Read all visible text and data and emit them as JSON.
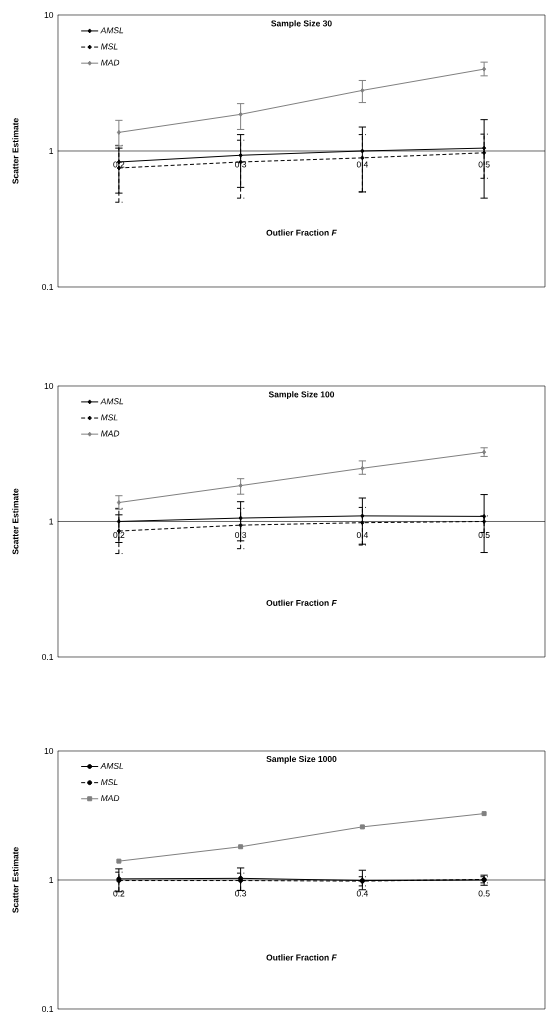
{
  "chart_data": [
    {
      "type": "line",
      "title": "Sample Size 30",
      "xlabel": "Outlier Fraction *F*",
      "ylabel": "Scatter Estimate",
      "categories": [
        "0.2",
        "0.3",
        "0.4",
        "0.5"
      ],
      "log": true,
      "ylim": [
        0.1,
        10
      ],
      "yticks": [
        0.1,
        1,
        10
      ],
      "legend": "top left",
      "series": [
        {
          "name": "AMSL",
          "color": "#000000",
          "marker": "diamond",
          "line_style": "solid",
          "values": [
            0.83,
            0.93,
            1.0,
            1.05
          ],
          "errors": [
            [
              0.49,
              1.05
            ],
            [
              0.54,
              1.32
            ],
            [
              0.5,
              1.5
            ],
            [
              0.45,
              1.7
            ]
          ]
        },
        {
          "name": "MSL",
          "color": "#000000",
          "marker": "diamond",
          "line_style": "dashed",
          "values": [
            0.75,
            0.83,
            0.89,
            0.97
          ],
          "errors": [
            [
              0.42,
              1.1
            ],
            [
              0.45,
              1.2
            ],
            [
              0.5,
              1.32
            ],
            [
              0.63,
              1.33
            ]
          ]
        },
        {
          "name": "MAD",
          "color": "#808080",
          "marker": "diamond",
          "line_style": "solid",
          "values": [
            1.37,
            1.86,
            2.79,
            4.0
          ],
          "errors": [
            [
              1.09,
              1.68
            ],
            [
              1.44,
              2.23
            ],
            [
              2.27,
              3.3
            ],
            [
              3.57,
              4.5
            ]
          ]
        }
      ]
    },
    {
      "type": "line",
      "title": "Sample Size 100",
      "xlabel": "Outlier Fraction *F*",
      "ylabel": "Scatter Estimate",
      "categories": [
        "0.2",
        "0.3",
        "0.4",
        "0.5"
      ],
      "log": true,
      "ylim": [
        0.1,
        10
      ],
      "yticks": [
        0.1,
        1,
        10
      ],
      "legend": "top left",
      "series": [
        {
          "name": "AMSL",
          "color": "#000000",
          "marker": "diamond",
          "line_style": "solid",
          "values": [
            1.0,
            1.06,
            1.1,
            1.09
          ],
          "errors": [
            [
              0.7,
              1.12
            ],
            [
              0.72,
              1.4
            ],
            [
              0.68,
              1.49
            ],
            [
              0.59,
              1.58
            ]
          ]
        },
        {
          "name": "MSL",
          "color": "#000000",
          "marker": "diamond",
          "line_style": "dashed",
          "values": [
            0.85,
            0.94,
            0.98,
            1.0
          ],
          "errors": [
            [
              0.58,
              1.25
            ],
            [
              0.63,
              1.25
            ],
            [
              0.67,
              1.27
            ],
            [
              0.83,
              1.1
            ]
          ]
        },
        {
          "name": "MAD",
          "color": "#808080",
          "marker": "diamond",
          "line_style": "solid",
          "values": [
            1.38,
            1.84,
            2.47,
            3.25
          ],
          "errors": [
            [
              1.23,
              1.55
            ],
            [
              1.59,
              2.07
            ],
            [
              2.23,
              2.8
            ],
            [
              3.02,
              3.5
            ]
          ]
        }
      ]
    },
    {
      "type": "line",
      "title": "Sample Size 1000",
      "xlabel": "Outlier Fraction *F*",
      "ylabel": "Scatter Estimate",
      "categories": [
        "0.2",
        "0.3",
        "0.4",
        "0.5"
      ],
      "log": true,
      "ylim": [
        0.1,
        10
      ],
      "yticks": [
        0.1,
        1,
        10
      ],
      "legend": "top left",
      "series": [
        {
          "name": "AMSL",
          "color": "#000000",
          "marker": "circle",
          "line_style": "solid",
          "values": [
            1.02,
            1.03,
            0.99,
            1.0
          ],
          "errors": [
            [
              0.81,
              1.22
            ],
            [
              0.83,
              1.24
            ],
            [
              0.84,
              1.19
            ],
            [
              0.91,
              1.09
            ]
          ]
        },
        {
          "name": "MSL",
          "color": "#000000",
          "marker": "circle",
          "line_style": "dashed",
          "values": [
            0.99,
            0.99,
            0.98,
            1.01
          ],
          "errors": [
            [
              0.82,
              1.15
            ],
            [
              0.83,
              1.13
            ],
            [
              0.9,
              1.06
            ],
            [
              0.95,
              1.06
            ]
          ]
        },
        {
          "name": "MAD",
          "color": "#808080",
          "marker": "square",
          "line_style": "solid",
          "values": [
            1.4,
            1.81,
            2.58,
            3.27
          ]
        }
      ]
    }
  ]
}
